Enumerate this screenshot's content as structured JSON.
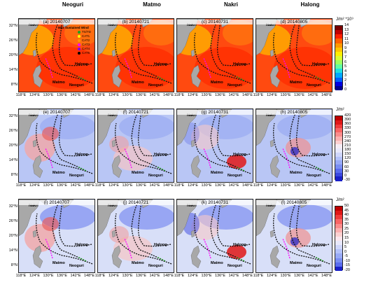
{
  "columns": [
    "Neoguri",
    "Matmo",
    "Nakri",
    "Halong"
  ],
  "rows": [
    {
      "panels": [
        "(a) 20140707",
        "(b) 20140721",
        "(c) 20140731",
        "(d) 20140805"
      ],
      "colorbar": {
        "unit": "J/m² *10⁹",
        "ticks": [
          "14",
          "13",
          "12",
          "11",
          "10",
          "9",
          "8",
          "7",
          "6",
          "5",
          "4",
          "3",
          "2",
          "1",
          "0"
        ],
        "colors": [
          "#7a0000",
          "#c00000",
          "#ff2000",
          "#ff6000",
          "#ff9800",
          "#ffc400",
          "#ffee00",
          "#d8ff30",
          "#9cff60",
          "#60ffa0",
          "#20e0e0",
          "#00a8ff",
          "#0060ff",
          "#0000e0",
          "#000090"
        ]
      }
    },
    {
      "panels": [
        "(e) 20140707",
        "(f) 20140721",
        "(g) 20140731",
        "(h) 20140805"
      ],
      "colorbar": {
        "unit": "J/m²",
        "ticks": [
          "420",
          "390",
          "360",
          "330",
          "300",
          "270",
          "240",
          "210",
          "180",
          "150",
          "120",
          "90",
          "60",
          "30",
          "0",
          "-30"
        ],
        "colors": [
          "#c00000",
          "#e01818",
          "#f03c3c",
          "#f86464",
          "#fa8c8c",
          "#fbb0b0",
          "#fcd0d0",
          "#f4ecf4",
          "#e8e8fb",
          "#cfd6fb",
          "#b4c2fa",
          "#98aaf6",
          "#7a8ef2",
          "#5a6cee",
          "#3a48e0",
          "#1a20c8"
        ]
      }
    },
    {
      "panels": [
        "(i) 20140707",
        "(j) 20140721",
        "(k) 20140731",
        "(l) 20140805"
      ],
      "colorbar": {
        "unit": "J/m²",
        "ticks": [
          "50",
          "45",
          "40",
          "35",
          "30",
          "25",
          "20",
          "15",
          "10",
          "5",
          "0",
          "-5",
          "-10",
          "-15",
          "-20"
        ],
        "colors": [
          "#c00000",
          "#e01818",
          "#f03c3c",
          "#f86464",
          "#fa8c8c",
          "#fbb0b0",
          "#fcd0d0",
          "#fae6ec",
          "#e8e8fb",
          "#cfd6fb",
          "#b4c2fa",
          "#98aaf6",
          "#7a8ef2",
          "#5a6cee",
          "#1a20c8"
        ]
      }
    }
  ],
  "lat_labels": [
    "32°N",
    "26°N",
    "20°N",
    "14°N",
    "8°N"
  ],
  "lon_labels": [
    "118°E",
    "124°E",
    "130°E",
    "136°E",
    "142°E",
    "148°E"
  ],
  "typhoon_labels": [
    "Nakri",
    "Matmo",
    "Neoguri",
    "Halong"
  ],
  "legend": {
    "title": "Max Sustained Wind",
    "items": [
      "TS/TD",
      "CAT1",
      "CAT2",
      "CAT3",
      "CAT4",
      "CAT5"
    ],
    "colors": [
      "#20a020",
      "#ffff00",
      "#ff9900",
      "#ff00ff",
      "#8000ff",
      "#000000"
    ]
  },
  "panel_colors": {
    "sst_base": "#ff4a10",
    "sst_warm": "#ff2a00",
    "sst_cool": "#ffb000",
    "row2_base": "#b9c6f5",
    "row3_base": "#d8dff8",
    "land": "#a8a8a8",
    "track_dark": "#111111",
    "track_green": "#1fa31f",
    "track_magenta": "#ff00ff"
  }
}
